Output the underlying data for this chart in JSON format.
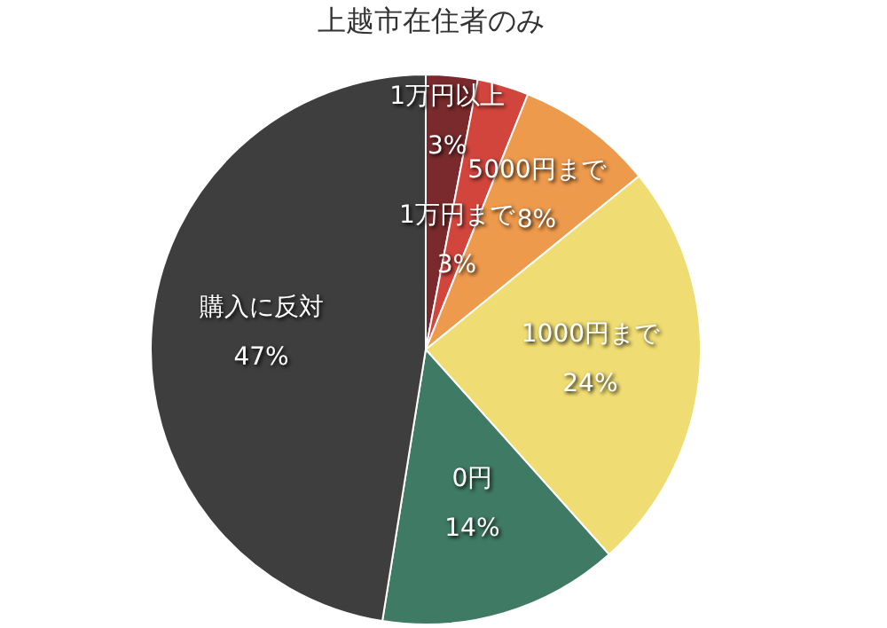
{
  "chart_data": {
    "type": "pie",
    "title": "上越市在住者のみ",
    "categories": [
      "1万円以上",
      "1万円まで",
      "5000円まで",
      "1000円まで",
      "0円",
      "購入に反対"
    ],
    "values": [
      3,
      3,
      8,
      24,
      14,
      47
    ],
    "value_labels": [
      "3%",
      "3%",
      "8%",
      "24%",
      "14%",
      "47%"
    ],
    "colors": [
      "#7a2a2c",
      "#d2453d",
      "#ee9a4c",
      "#efdc72",
      "#3f7a64",
      "#3e3e3e"
    ],
    "legend": false
  }
}
